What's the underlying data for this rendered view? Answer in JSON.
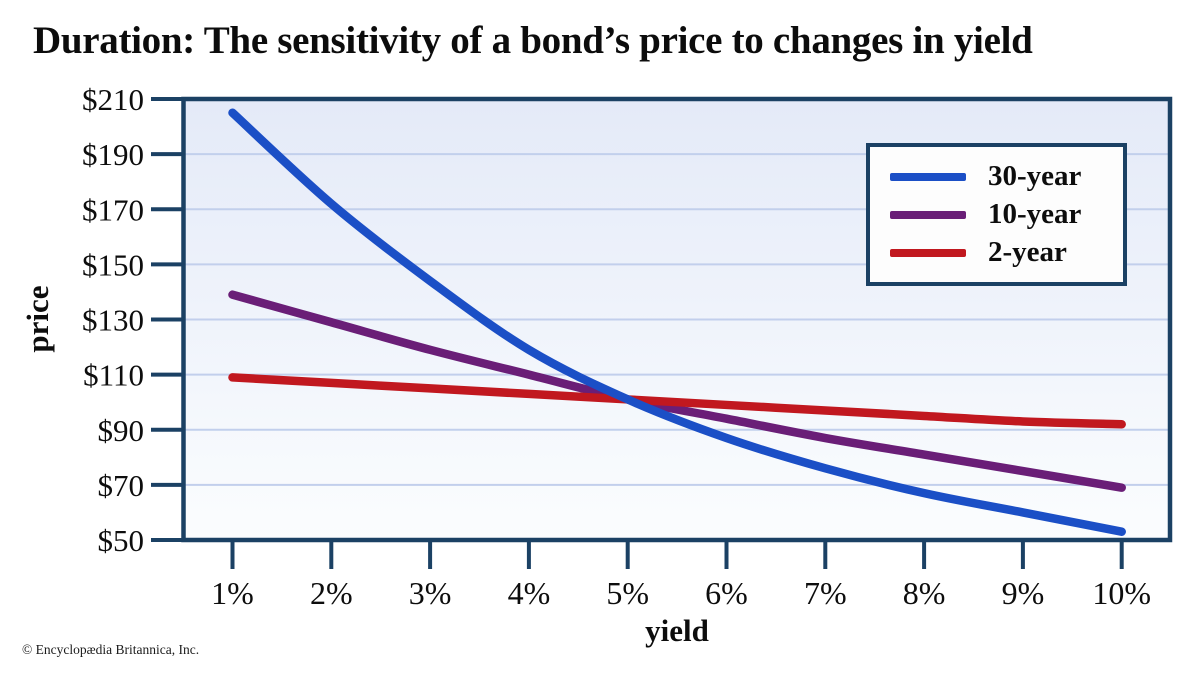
{
  "page": {
    "title": "Duration: The sensitivity of a bond’s price to changes in yield",
    "copyright": "© Encyclopædia Britannica, Inc."
  },
  "chart_data": {
    "type": "line",
    "title": "Duration: The sensitivity of a bond’s price to changes in yield",
    "xlabel": "yield",
    "ylabel": "price",
    "x": [
      1,
      2,
      3,
      4,
      5,
      6,
      7,
      8,
      9,
      10
    ],
    "x_tick_labels": [
      "1%",
      "2%",
      "3%",
      "4%",
      "5%",
      "6%",
      "7%",
      "8%",
      "9%",
      "10%"
    ],
    "y_ticks": [
      50,
      70,
      90,
      110,
      130,
      150,
      170,
      190,
      210
    ],
    "y_tick_labels": [
      "$50",
      "$70",
      "$90",
      "$110",
      "$130",
      "$150",
      "$170",
      "$190",
      "$210"
    ],
    "xlim": [
      1,
      10
    ],
    "ylim": [
      50,
      210
    ],
    "grid": "horizontal",
    "legend_position": "top-right",
    "series": [
      {
        "name": "30-year",
        "color": "#1b4fc6",
        "values": [
          205,
          172,
          144,
          119,
          101,
          87,
          76,
          67,
          60,
          53
        ]
      },
      {
        "name": "10-year",
        "color": "#6a1e77",
        "values": [
          139,
          129,
          119,
          110,
          101,
          94,
          87,
          81,
          75,
          69
        ]
      },
      {
        "name": "2-year",
        "color": "#c1181f",
        "values": [
          109,
          107,
          105,
          103,
          101,
          99,
          97,
          95,
          93,
          92
        ]
      }
    ],
    "colors": {
      "axis": "#1b4164",
      "grid": "#c2cfec",
      "plot_bg_top": "#e4eaf8",
      "plot_bg_bottom": "#fbfdfe"
    }
  }
}
